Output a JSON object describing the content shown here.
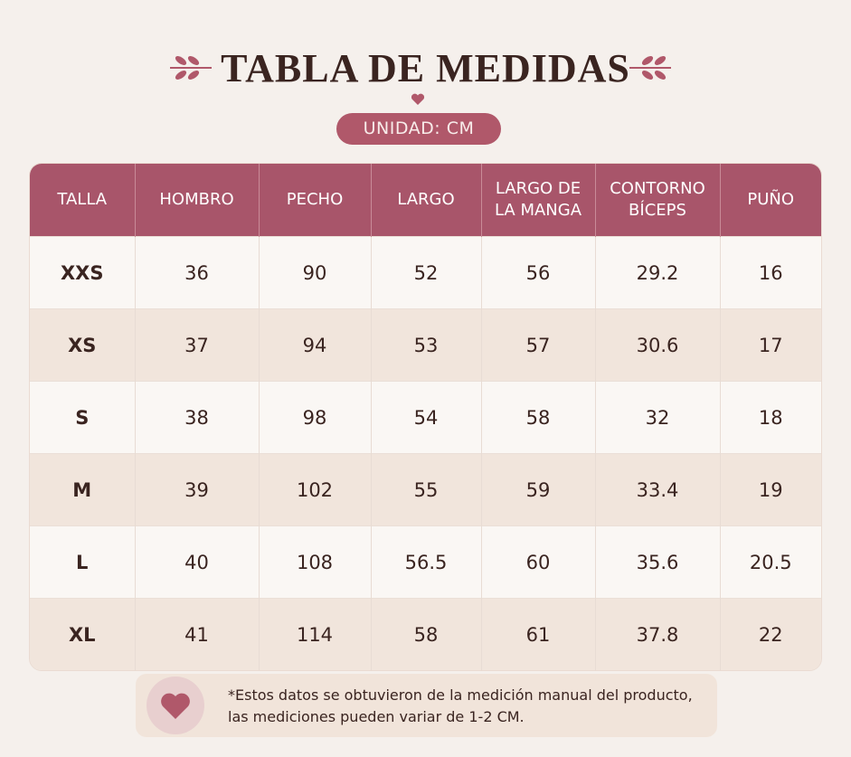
{
  "header": {
    "title": "TABLA DE MEDIDAS",
    "unit": "UNIDAD: CM"
  },
  "table": {
    "columns": [
      "TALLA",
      "HOMBRO",
      "PECHO",
      "LARGO",
      "LARGO DE LA MANGA",
      "CONTORNO BÍCEPS",
      "PUÑO"
    ],
    "rows": [
      [
        "XXS",
        36,
        90,
        52,
        56,
        29.2,
        16
      ],
      [
        "XS",
        37,
        94,
        53,
        57,
        30.6,
        17
      ],
      [
        "S",
        38,
        98,
        54,
        58,
        32,
        18
      ],
      [
        "M",
        39,
        102,
        55,
        59,
        33.4,
        19
      ],
      [
        "L",
        40,
        108,
        56.5,
        60,
        35.6,
        20.5
      ],
      [
        "XL",
        41,
        114,
        58,
        61,
        37.8,
        22
      ]
    ]
  },
  "note": {
    "lines": [
      "*Estos datos se obtuvieron de la medición manual del producto,",
      "las mediciones pueden variar de 1-2 CM."
    ]
  }
}
